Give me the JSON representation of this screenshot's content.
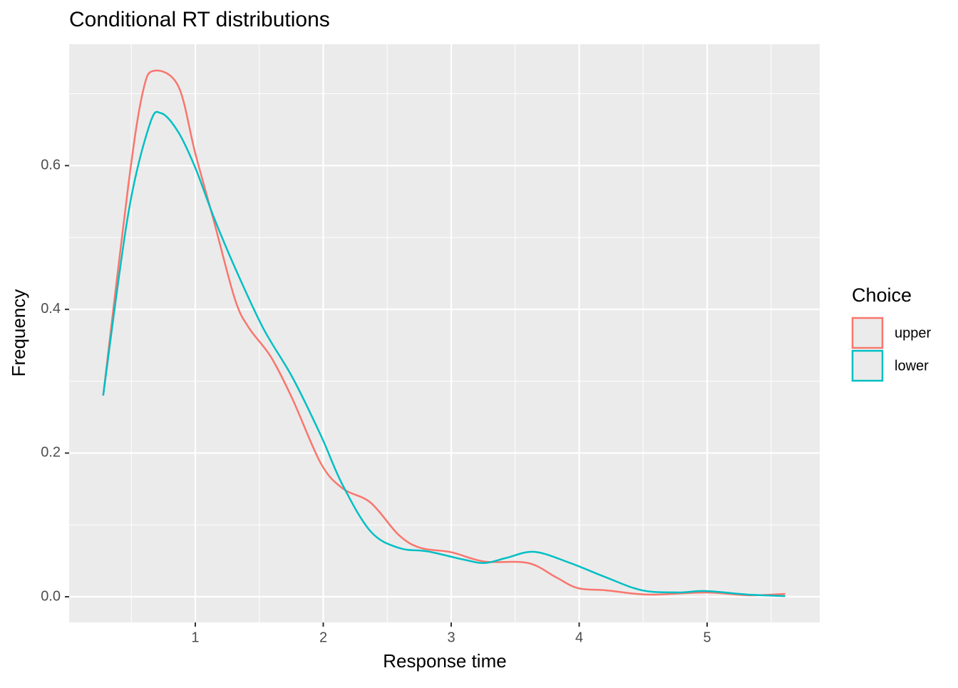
{
  "chart_data": {
    "type": "line",
    "title": "Conditional RT distributions",
    "x_label": "Response time",
    "y_label": "Frequency",
    "legend_title": "Choice",
    "legend": "right",
    "xlim": [
      0.014,
      5.88
    ],
    "ylim": [
      -0.0357,
      0.769
    ],
    "xticks": [
      1,
      2,
      3,
      4,
      5
    ],
    "yticks": [
      {
        "value": 0,
        "label": "0.0"
      },
      0.2,
      0.4,
      0.6
    ],
    "xminor": [
      0.5,
      1.5,
      2.5,
      3.5,
      4.5,
      5.5
    ],
    "yminor": [
      0.1,
      0.3,
      0.5,
      0.7
    ],
    "grid": true,
    "series": [
      {
        "name": "upper",
        "color": "#F8766D",
        "x": [
          0.28,
          0.476,
          0.588,
          0.677,
          0.866,
          1.0,
          1.145,
          1.31,
          1.42,
          1.59,
          1.76,
          1.98,
          2.15,
          2.37,
          2.59,
          2.76,
          3.0,
          3.26,
          3.6,
          3.82,
          3.99,
          4.21,
          4.54,
          4.99,
          5.32,
          5.61
        ],
        "values": [
          0.28,
          0.572,
          0.701,
          0.732,
          0.711,
          0.617,
          0.523,
          0.414,
          0.374,
          0.334,
          0.275,
          0.186,
          0.151,
          0.131,
          0.086,
          0.068,
          0.062,
          0.049,
          0.047,
          0.027,
          0.012,
          0.009,
          0.003,
          0.006,
          0.002,
          0.004
        ]
      },
      {
        "name": "lower",
        "color": "#00BFC4",
        "x": [
          0.28,
          0.476,
          0.643,
          0.733,
          0.866,
          1.0,
          1.145,
          1.31,
          1.53,
          1.76,
          1.98,
          2.15,
          2.37,
          2.59,
          2.82,
          3.09,
          3.26,
          3.43,
          3.65,
          3.93,
          4.21,
          4.49,
          4.77,
          4.99,
          5.32,
          5.61
        ],
        "values": [
          0.28,
          0.533,
          0.657,
          0.673,
          0.647,
          0.597,
          0.528,
          0.458,
          0.374,
          0.305,
          0.225,
          0.156,
          0.091,
          0.068,
          0.063,
          0.052,
          0.047,
          0.054,
          0.0625,
          0.047,
          0.027,
          0.009,
          0.006,
          0.008,
          0.003,
          0.001
        ]
      }
    ]
  }
}
